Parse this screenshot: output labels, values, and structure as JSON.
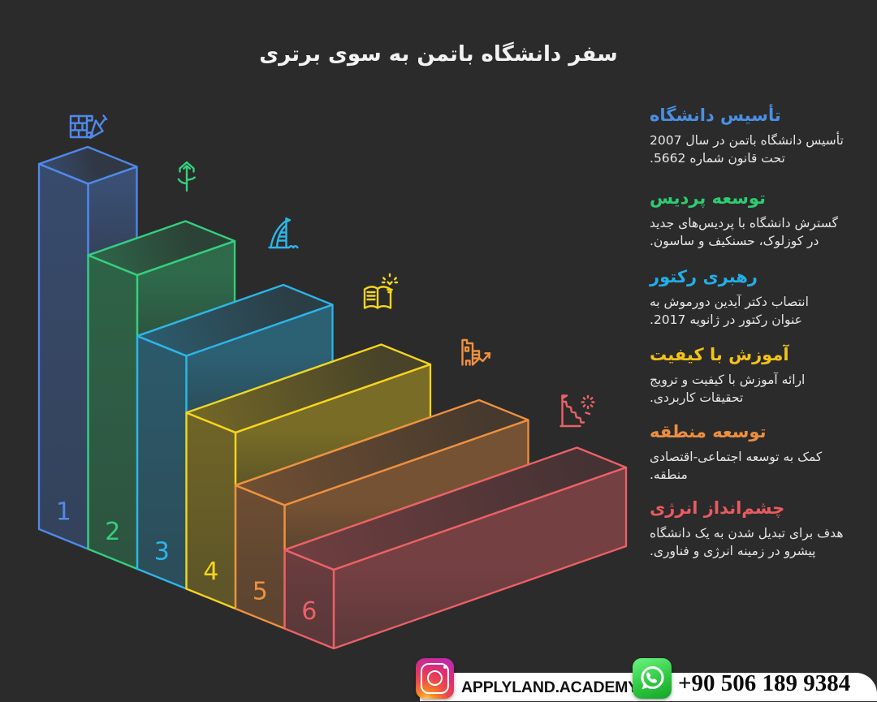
{
  "title": "سفر دانشگاه باتمن به سوی برتری",
  "colors": {
    "background": "#2b2b2b",
    "title_text": "#f2f2f2",
    "body_text": "#e6e6e6",
    "footer_bar": "#ffffff"
  },
  "steps": [
    {
      "number": "1",
      "color": "#5089ea",
      "heading_color": "#4a8fe2",
      "icon": "bricks-trowel-icon",
      "milestone": {
        "title": "تأسیس دانشگاه",
        "body": "تأسیس دانشگاه باتمن در سال 2007\nتحت قانون شماره 5662."
      }
    },
    {
      "number": "2",
      "color": "#34d07e",
      "heading_color": "#2ecc71",
      "icon": "plant-growth-icon",
      "milestone": {
        "title": "توسعه پردیس",
        "body": "گسترش دانشگاه با پردیس‌های جدید\nدر کوزلوک، حسنکیف و ساسون."
      }
    },
    {
      "number": "3",
      "color": "#2db5e8",
      "heading_color": "#23aee6",
      "icon": "burj-tower-icon",
      "milestone": {
        "title": "رهبری رکتور",
        "body": "انتصاب دکتر آیدین دورموش به\nعنوان رکتور در ژانویه 2017."
      }
    },
    {
      "number": "4",
      "color": "#f6d51e",
      "heading_color": "#f2c318",
      "icon": "book-bulb-icon",
      "milestone": {
        "title": "آموزش با کیفیت",
        "body": "ارائه آموزش با کیفیت و ترویج\nتحقیقات کاربردی."
      }
    },
    {
      "number": "5",
      "color": "#ee9140",
      "heading_color": "#ed8f3f",
      "icon": "building-growth-icon",
      "milestone": {
        "title": "توسعه منطقه",
        "body": "کمک به توسعه اجتماعی-اقتصادی\nمنطقه."
      }
    },
    {
      "number": "6",
      "color": "#ec6167",
      "heading_color": "#eb5a60",
      "icon": "cliff-sun-icon",
      "milestone": {
        "title": "چشم‌انداز انرژی",
        "body": "هدف برای تبدیل شدن به یک دانشگاه\nپیشرو در زمینه انرژی و فناوری."
      }
    }
  ],
  "footer": {
    "instagram_icon": "instagram-icon",
    "instagram_handle": "APPLYLAND.ACADEMY",
    "whatsapp_icon": "whatsapp-icon",
    "phone": "+90 506 189 9384"
  }
}
